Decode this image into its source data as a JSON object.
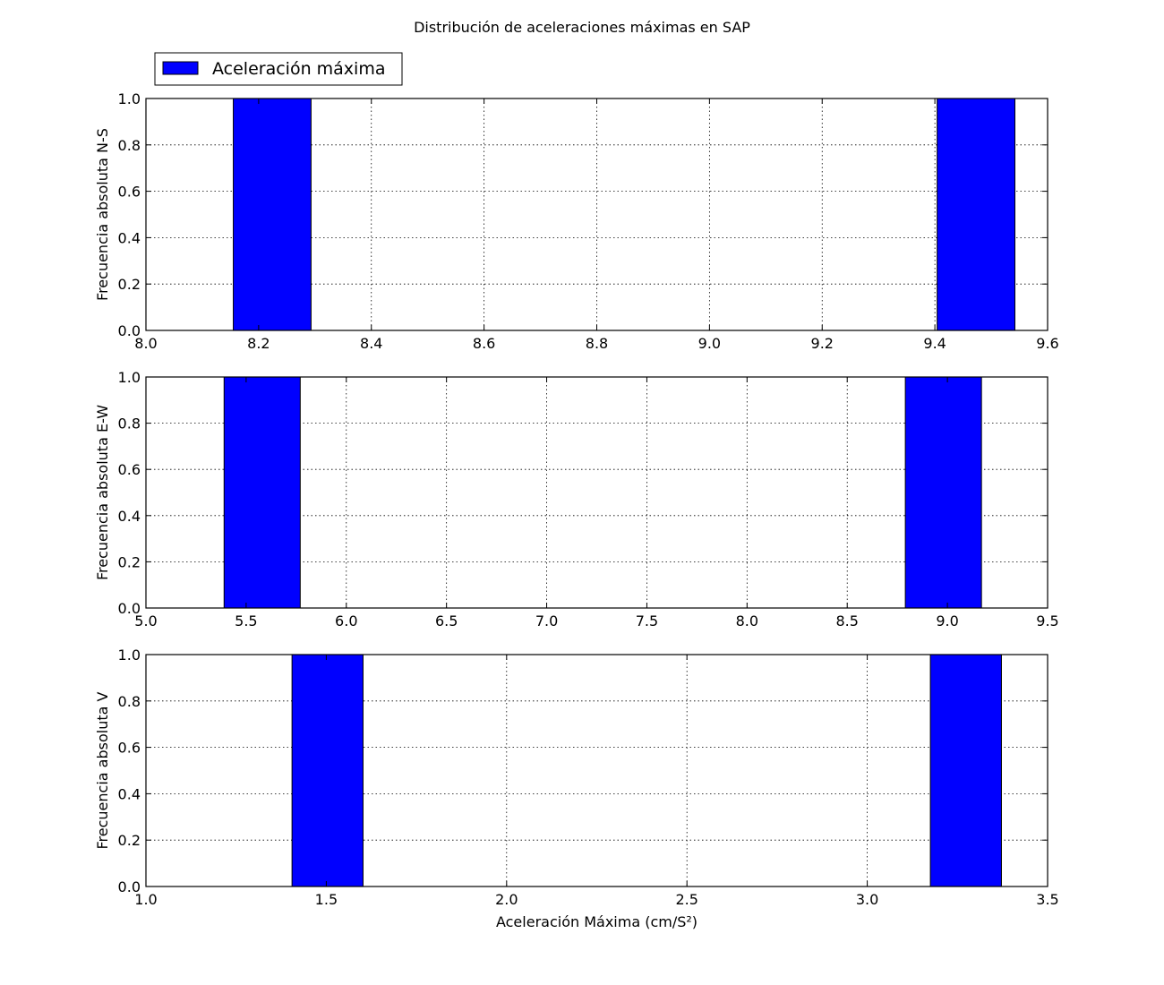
{
  "figure": {
    "title": "Distribución de aceleraciones máximas en SAP",
    "colors": {
      "bar_fill": "#0000ff",
      "bar_edge": "#000000",
      "grid": "#000000",
      "background": "#ffffff"
    }
  },
  "legend": {
    "label": "Aceleración máxima",
    "placement": "upper-left, above top subplot"
  },
  "chart_data": [
    {
      "type": "bar",
      "title": "",
      "xlabel": "",
      "ylabel": "Frecuencia absoluta N-S",
      "xlim": [
        8.0,
        9.6
      ],
      "ylim": [
        0.0,
        1.0
      ],
      "grid": true,
      "xticks": [
        "8.0",
        "8.2",
        "8.4",
        "8.6",
        "8.8",
        "9.0",
        "9.2",
        "9.4",
        "9.6"
      ],
      "yticks": [
        "0.0",
        "0.2",
        "0.4",
        "0.6",
        "0.8",
        "1.0"
      ],
      "bars": [
        {
          "x0": 8.155,
          "x1": 8.293,
          "value": 1.0
        },
        {
          "x0": 9.404,
          "x1": 9.542,
          "value": 1.0
        }
      ]
    },
    {
      "type": "bar",
      "title": "",
      "xlabel": "",
      "ylabel": "Frecuencia absoluta E-W",
      "xlim": [
        5.0,
        9.5
      ],
      "ylim": [
        0.0,
        1.0
      ],
      "grid": true,
      "xticks": [
        "5.0",
        "5.5",
        "6.0",
        "6.5",
        "7.0",
        "7.5",
        "8.0",
        "8.5",
        "9.0",
        "9.5"
      ],
      "yticks": [
        "0.0",
        "0.2",
        "0.4",
        "0.6",
        "0.8",
        "1.0"
      ],
      "bars": [
        {
          "x0": 5.39,
          "x1": 5.77,
          "value": 1.0
        },
        {
          "x0": 8.79,
          "x1": 9.17,
          "value": 1.0
        }
      ]
    },
    {
      "type": "bar",
      "title": "",
      "xlabel": "Aceleración Máxima (cm/S²)",
      "ylabel": "Frecuencia absoluta V",
      "xlim": [
        1.0,
        3.5
      ],
      "ylim": [
        0.0,
        1.0
      ],
      "grid": true,
      "xticks": [
        "1.0",
        "1.5",
        "2.0",
        "2.5",
        "3.0",
        "3.5"
      ],
      "yticks": [
        "0.0",
        "0.2",
        "0.4",
        "0.6",
        "0.8",
        "1.0"
      ],
      "bars": [
        {
          "x0": 1.405,
          "x1": 1.602,
          "value": 1.0
        },
        {
          "x0": 3.175,
          "x1": 3.372,
          "value": 1.0
        }
      ]
    }
  ]
}
